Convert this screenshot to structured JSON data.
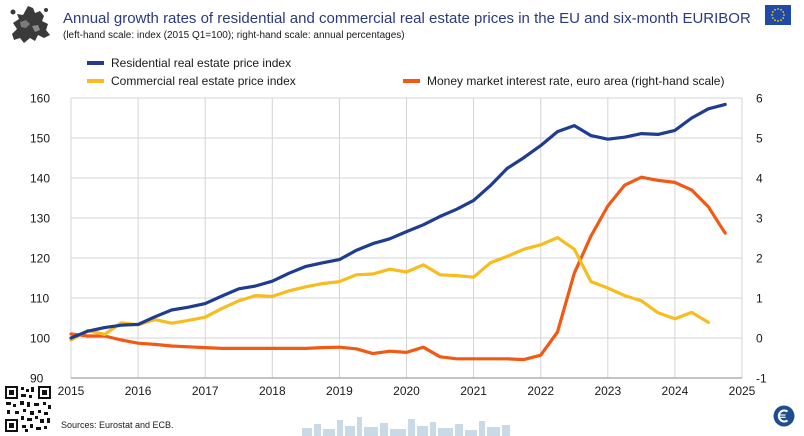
{
  "header": {
    "title": "Annual growth rates of residential and commercial real estate prices in the EU and six-month EURIBOR",
    "subtitle": "(left-hand scale: index (2015 Q1=100); right-hand scale: annual percentages)"
  },
  "legend": {
    "residential": "Residential real estate price index",
    "commercial": "Commercial real estate price index",
    "money_market": "Money market interest rate, euro area (right-hand scale)"
  },
  "footer": {
    "source": "Sources: Eurostat and ECB."
  },
  "colors": {
    "residential": "#1f3c8f",
    "commercial": "#f7bc1d",
    "money_market": "#f05a14",
    "grid": "#d4d4d4",
    "title": "#2b3a80"
  },
  "chart_data": {
    "type": "line",
    "title": "Annual growth rates of residential and commercial real estate prices in the EU and six-month EURIBOR",
    "x_label": "",
    "left_axis": {
      "label": "index (2015 Q1=100)",
      "min": 90,
      "max": 160,
      "ticks": [
        90,
        100,
        110,
        120,
        130,
        140,
        150,
        160
      ]
    },
    "right_axis": {
      "label": "annual percentages",
      "min": -1,
      "max": 6,
      "ticks": [
        -1,
        0,
        1,
        2,
        3,
        4,
        5,
        6
      ]
    },
    "x_axis": {
      "min": 2015,
      "max": 2025,
      "ticks": [
        2015,
        2016,
        2017,
        2018,
        2019,
        2020,
        2021,
        2022,
        2023,
        2024,
        2025
      ]
    },
    "grid": true,
    "series": [
      {
        "name": "Residential real estate price index",
        "axis": "left",
        "x": [
          2015.0,
          2015.25,
          2015.5,
          2015.75,
          2016.0,
          2016.25,
          2016.5,
          2016.75,
          2017.0,
          2017.25,
          2017.5,
          2017.75,
          2018.0,
          2018.25,
          2018.5,
          2018.75,
          2019.0,
          2019.25,
          2019.5,
          2019.75,
          2020.0,
          2020.25,
          2020.5,
          2020.75,
          2021.0,
          2021.25,
          2021.5,
          2021.75,
          2022.0,
          2022.25,
          2022.5,
          2022.75,
          2023.0,
          2023.25,
          2023.5,
          2023.75,
          2024.0,
          2024.25,
          2024.5,
          2024.75
        ],
        "values": [
          100.0,
          101.7,
          102.6,
          103.2,
          103.4,
          105.3,
          107.0,
          107.7,
          108.6,
          110.5,
          112.3,
          113.0,
          114.2,
          116.2,
          117.9,
          118.8,
          119.6,
          121.9,
          123.6,
          124.8,
          126.6,
          128.3,
          130.4,
          132.2,
          134.4,
          138.1,
          142.4,
          145.1,
          148.1,
          151.6,
          153.1,
          150.6,
          149.7,
          150.2,
          151.1,
          150.9,
          151.9,
          155.0,
          157.3,
          158.4
        ]
      },
      {
        "name": "Commercial real estate price index",
        "axis": "left",
        "x": [
          2015.0,
          2015.25,
          2015.5,
          2015.75,
          2016.0,
          2016.25,
          2016.5,
          2016.75,
          2017.0,
          2017.25,
          2017.5,
          2017.75,
          2018.0,
          2018.25,
          2018.5,
          2018.75,
          2019.0,
          2019.25,
          2019.5,
          2019.75,
          2020.0,
          2020.25,
          2020.5,
          2020.75,
          2021.0,
          2021.25,
          2021.5,
          2021.75,
          2022.0,
          2022.25,
          2022.5,
          2022.75,
          2023.0,
          2023.25,
          2023.5,
          2023.75,
          2024.0,
          2024.25,
          2024.5
        ],
        "values": [
          99.5,
          101.9,
          100.9,
          103.8,
          103.3,
          104.6,
          103.7,
          104.4,
          105.2,
          107.4,
          109.3,
          110.6,
          110.4,
          111.8,
          112.8,
          113.6,
          114.1,
          115.8,
          116.0,
          117.2,
          116.5,
          118.3,
          115.8,
          115.6,
          115.2,
          118.8,
          120.4,
          122.2,
          123.3,
          125.1,
          122.2,
          114.1,
          112.5,
          110.6,
          109.3,
          106.3,
          104.8,
          106.4,
          103.9
        ]
      },
      {
        "name": "Money market interest rate, euro area (right-hand scale)",
        "axis": "right",
        "x": [
          2015.0,
          2015.25,
          2015.5,
          2015.75,
          2016.0,
          2016.25,
          2016.5,
          2016.75,
          2017.0,
          2017.25,
          2017.5,
          2017.75,
          2018.0,
          2018.25,
          2018.5,
          2018.75,
          2019.0,
          2019.25,
          2019.5,
          2019.75,
          2020.0,
          2020.25,
          2020.5,
          2020.75,
          2021.0,
          2021.25,
          2021.5,
          2021.75,
          2022.0,
          2022.25,
          2022.5,
          2022.75,
          2023.0,
          2023.25,
          2023.5,
          2023.75,
          2024.0,
          2024.25,
          2024.5,
          2024.75
        ],
        "values": [
          0.1,
          0.05,
          0.05,
          -0.05,
          -0.13,
          -0.16,
          -0.2,
          -0.22,
          -0.24,
          -0.26,
          -0.26,
          -0.26,
          -0.26,
          -0.26,
          -0.26,
          -0.24,
          -0.23,
          -0.27,
          -0.39,
          -0.33,
          -0.36,
          -0.23,
          -0.47,
          -0.52,
          -0.52,
          -0.52,
          -0.52,
          -0.54,
          -0.43,
          0.15,
          1.62,
          2.55,
          3.3,
          3.82,
          4.02,
          3.94,
          3.89,
          3.7,
          3.28,
          2.62
        ]
      }
    ]
  }
}
